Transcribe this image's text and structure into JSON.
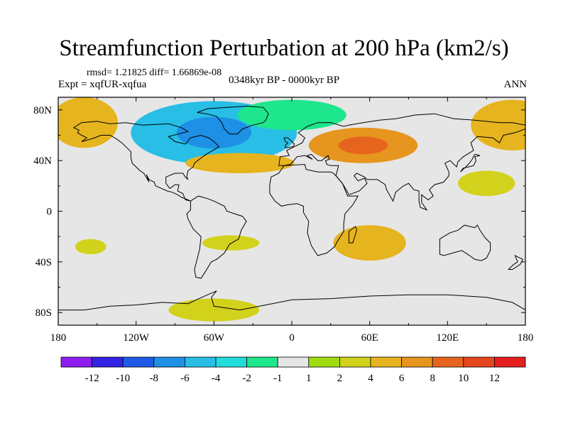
{
  "chart_data": {
    "type": "heatmap",
    "title": "Streamfunction Perturbation at 200 hPa (km2/s)",
    "stats_label": "rmsd= 1.21825 diff= 1.66869e-08",
    "experiment_label": "Expt = xqfUR-xqfua",
    "period_label": "0348kyr BP - 0000kyr BP",
    "season_label": "ANN",
    "x_ticks": [
      {
        "lon": -180,
        "label": "180"
      },
      {
        "lon": -120,
        "label": "120W"
      },
      {
        "lon": -60,
        "label": "60W"
      },
      {
        "lon": 0,
        "label": "0"
      },
      {
        "lon": 60,
        "label": "60E"
      },
      {
        "lon": 120,
        "label": "120E"
      },
      {
        "lon": 180,
        "label": "180"
      }
    ],
    "y_ticks": [
      {
        "lat": 80,
        "label": "80N"
      },
      {
        "lat": 40,
        "label": "40N"
      },
      {
        "lat": 0,
        "label": "0"
      },
      {
        "lat": -40,
        "label": "40S"
      },
      {
        "lat": -80,
        "label": "80S"
      }
    ],
    "xlim": [
      -180,
      180
    ],
    "ylim": [
      -90,
      90
    ],
    "colorbar": {
      "colors": [
        "#8c1cf0",
        "#3222e6",
        "#1e5ae6",
        "#1e90e6",
        "#28bee6",
        "#22dcdc",
        "#1ee68c",
        "#e6e6e6",
        "#a0dc10",
        "#d2d21c",
        "#e6b41e",
        "#e6961e",
        "#e6641e",
        "#e6461e",
        "#e61e1e"
      ],
      "labels": [
        "-12",
        "-10",
        "-8",
        "-6",
        "-4",
        "-2",
        "-1",
        "1",
        "2",
        "4",
        "6",
        "8",
        "10",
        "12"
      ]
    },
    "anomalies": [
      {
        "lon": -60,
        "lat": 62,
        "rlon": 64,
        "rlat": 25,
        "value": -6
      },
      {
        "lon": 0,
        "lat": 76,
        "rlon": 42,
        "rlat": 12,
        "value": -2
      },
      {
        "lon": -160,
        "lat": 70,
        "rlon": 26,
        "rlat": 20,
        "value": 4
      },
      {
        "lon": 170,
        "lat": 68,
        "rlon": 32,
        "rlat": 20,
        "value": 4
      },
      {
        "lon": -40,
        "lat": 38,
        "rlon": 42,
        "rlat": 8,
        "value": 4
      },
      {
        "lon": 55,
        "lat": 52,
        "rlon": 42,
        "rlat": 14,
        "value": 6
      },
      {
        "lon": 150,
        "lat": 22,
        "rlon": 22,
        "rlat": 10,
        "value": 2
      },
      {
        "lon": -50,
        "lat": 18,
        "rlon": 42,
        "rlat": 7,
        "value": -1
      },
      {
        "lon": -155,
        "lat": -28,
        "rlon": 12,
        "rlat": 6,
        "value": 2
      },
      {
        "lon": 60,
        "lat": -25,
        "rlon": 28,
        "rlat": 14,
        "value": 4
      },
      {
        "lon": 175,
        "lat": -18,
        "rlon": 16,
        "rlat": 15,
        "value": -1
      },
      {
        "lon": -47,
        "lat": -25,
        "rlon": 22,
        "rlat": 6,
        "value": 2
      },
      {
        "lon": -60,
        "lat": -78,
        "rlon": 35,
        "rlat": 9,
        "value": 2
      }
    ]
  }
}
